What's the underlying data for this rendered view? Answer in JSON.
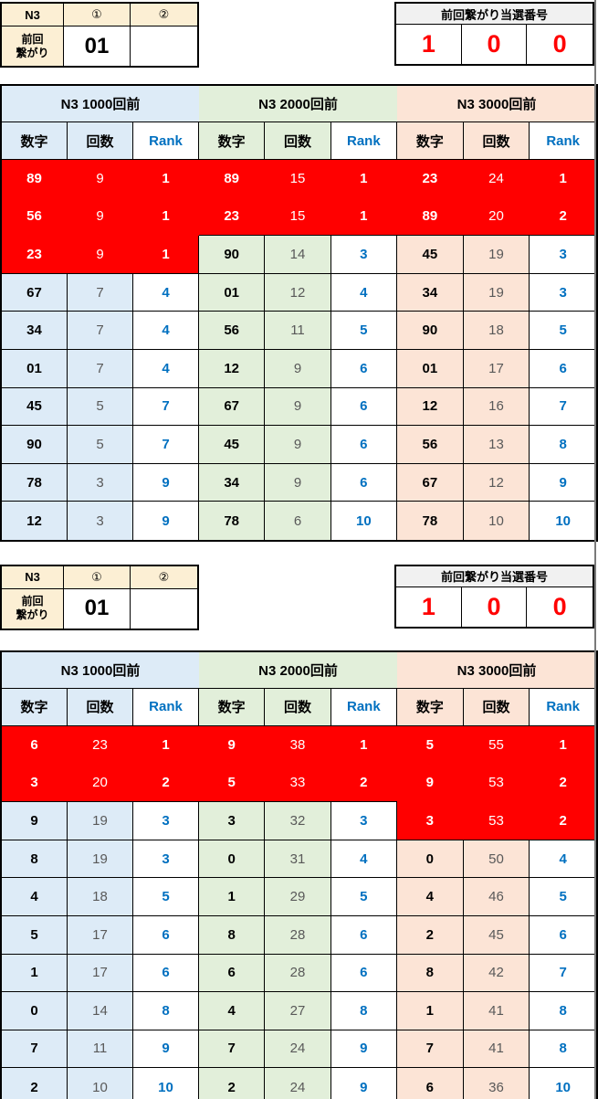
{
  "colors": {
    "highlight_red": "#FF0000",
    "rank_blue": "#0070C0",
    "blue_bg": "#DDEBF7",
    "green_bg": "#E2EFDA",
    "peach_bg": "#FCE4D6",
    "tan_bg": "#FCEFD4",
    "win_header_bg": "#F1F1F1"
  },
  "sections": [
    {
      "info": {
        "n3_label": "N3",
        "col1_label": "①",
        "col2_label": "②",
        "row_label_line1": "前回",
        "row_label_line2": "繋がり",
        "value1": "01",
        "value2": ""
      },
      "winning": {
        "title": "前回繋がり当選番号",
        "digits": [
          "1",
          "0",
          "0"
        ]
      },
      "tables": [
        {
          "title": "N3 1000回前",
          "headers": {
            "num": "数字",
            "count": "回数",
            "rank": "Rank"
          },
          "rows": [
            {
              "num": "89",
              "count": "9",
              "rank": "1",
              "red": true
            },
            {
              "num": "56",
              "count": "9",
              "rank": "1",
              "red": true
            },
            {
              "num": "23",
              "count": "9",
              "rank": "1",
              "red": true
            },
            {
              "num": "67",
              "count": "7",
              "rank": "4",
              "red": false
            },
            {
              "num": "34",
              "count": "7",
              "rank": "4",
              "red": false
            },
            {
              "num": "01",
              "count": "7",
              "rank": "4",
              "red": false
            },
            {
              "num": "45",
              "count": "5",
              "rank": "7",
              "red": false
            },
            {
              "num": "90",
              "count": "5",
              "rank": "7",
              "red": false
            },
            {
              "num": "78",
              "count": "3",
              "rank": "9",
              "red": false
            },
            {
              "num": "12",
              "count": "3",
              "rank": "9",
              "red": false
            }
          ]
        },
        {
          "title": "N3 2000回前",
          "headers": {
            "num": "数字",
            "count": "回数",
            "rank": "Rank"
          },
          "rows": [
            {
              "num": "89",
              "count": "15",
              "rank": "1",
              "red": true
            },
            {
              "num": "23",
              "count": "15",
              "rank": "1",
              "red": true
            },
            {
              "num": "90",
              "count": "14",
              "rank": "3",
              "red": false
            },
            {
              "num": "01",
              "count": "12",
              "rank": "4",
              "red": false
            },
            {
              "num": "56",
              "count": "11",
              "rank": "5",
              "red": false
            },
            {
              "num": "12",
              "count": "9",
              "rank": "6",
              "red": false
            },
            {
              "num": "67",
              "count": "9",
              "rank": "6",
              "red": false
            },
            {
              "num": "45",
              "count": "9",
              "rank": "6",
              "red": false
            },
            {
              "num": "34",
              "count": "9",
              "rank": "6",
              "red": false
            },
            {
              "num": "78",
              "count": "6",
              "rank": "10",
              "red": false
            }
          ]
        },
        {
          "title": "N3 3000回前",
          "headers": {
            "num": "数字",
            "count": "回数",
            "rank": "Rank"
          },
          "rows": [
            {
              "num": "23",
              "count": "24",
              "rank": "1",
              "red": true
            },
            {
              "num": "89",
              "count": "20",
              "rank": "2",
              "red": true
            },
            {
              "num": "45",
              "count": "19",
              "rank": "3",
              "red": false
            },
            {
              "num": "34",
              "count": "19",
              "rank": "3",
              "red": false
            },
            {
              "num": "90",
              "count": "18",
              "rank": "5",
              "red": false
            },
            {
              "num": "01",
              "count": "17",
              "rank": "6",
              "red": false
            },
            {
              "num": "12",
              "count": "16",
              "rank": "7",
              "red": false
            },
            {
              "num": "56",
              "count": "13",
              "rank": "8",
              "red": false
            },
            {
              "num": "67",
              "count": "12",
              "rank": "9",
              "red": false
            },
            {
              "num": "78",
              "count": "10",
              "rank": "10",
              "red": false
            }
          ]
        }
      ]
    },
    {
      "info": {
        "n3_label": "N3",
        "col1_label": "①",
        "col2_label": "②",
        "row_label_line1": "前回",
        "row_label_line2": "繋がり",
        "value1": "01",
        "value2": ""
      },
      "winning": {
        "title": "前回繋がり当選番号",
        "digits": [
          "1",
          "0",
          "0"
        ]
      },
      "tables": [
        {
          "title": "N3 1000回前",
          "headers": {
            "num": "数字",
            "count": "回数",
            "rank": "Rank"
          },
          "rows": [
            {
              "num": "6",
              "count": "23",
              "rank": "1",
              "red": true
            },
            {
              "num": "3",
              "count": "20",
              "rank": "2",
              "red": true
            },
            {
              "num": "9",
              "count": "19",
              "rank": "3",
              "red": false
            },
            {
              "num": "8",
              "count": "19",
              "rank": "3",
              "red": false
            },
            {
              "num": "4",
              "count": "18",
              "rank": "5",
              "red": false
            },
            {
              "num": "5",
              "count": "17",
              "rank": "6",
              "red": false
            },
            {
              "num": "1",
              "count": "17",
              "rank": "6",
              "red": false
            },
            {
              "num": "0",
              "count": "14",
              "rank": "8",
              "red": false
            },
            {
              "num": "7",
              "count": "11",
              "rank": "9",
              "red": false
            },
            {
              "num": "2",
              "count": "10",
              "rank": "10",
              "red": false
            }
          ]
        },
        {
          "title": "N3 2000回前",
          "headers": {
            "num": "数字",
            "count": "回数",
            "rank": "Rank"
          },
          "rows": [
            {
              "num": "9",
              "count": "38",
              "rank": "1",
              "red": true
            },
            {
              "num": "5",
              "count": "33",
              "rank": "2",
              "red": true
            },
            {
              "num": "3",
              "count": "32",
              "rank": "3",
              "red": false
            },
            {
              "num": "0",
              "count": "31",
              "rank": "4",
              "red": false
            },
            {
              "num": "1",
              "count": "29",
              "rank": "5",
              "red": false
            },
            {
              "num": "8",
              "count": "28",
              "rank": "6",
              "red": false
            },
            {
              "num": "6",
              "count": "28",
              "rank": "6",
              "red": false
            },
            {
              "num": "4",
              "count": "27",
              "rank": "8",
              "red": false
            },
            {
              "num": "7",
              "count": "24",
              "rank": "9",
              "red": false
            },
            {
              "num": "2",
              "count": "24",
              "rank": "9",
              "red": false
            }
          ]
        },
        {
          "title": "N3 3000回前",
          "headers": {
            "num": "数字",
            "count": "回数",
            "rank": "Rank"
          },
          "rows": [
            {
              "num": "5",
              "count": "55",
              "rank": "1",
              "red": true
            },
            {
              "num": "9",
              "count": "53",
              "rank": "2",
              "red": true
            },
            {
              "num": "3",
              "count": "53",
              "rank": "2",
              "red": true
            },
            {
              "num": "0",
              "count": "50",
              "rank": "4",
              "red": false
            },
            {
              "num": "4",
              "count": "46",
              "rank": "5",
              "red": false
            },
            {
              "num": "2",
              "count": "45",
              "rank": "6",
              "red": false
            },
            {
              "num": "8",
              "count": "42",
              "rank": "7",
              "red": false
            },
            {
              "num": "1",
              "count": "41",
              "rank": "8",
              "red": false
            },
            {
              "num": "7",
              "count": "41",
              "rank": "8",
              "red": false
            },
            {
              "num": "6",
              "count": "36",
              "rank": "10",
              "red": false
            }
          ]
        }
      ]
    }
  ]
}
